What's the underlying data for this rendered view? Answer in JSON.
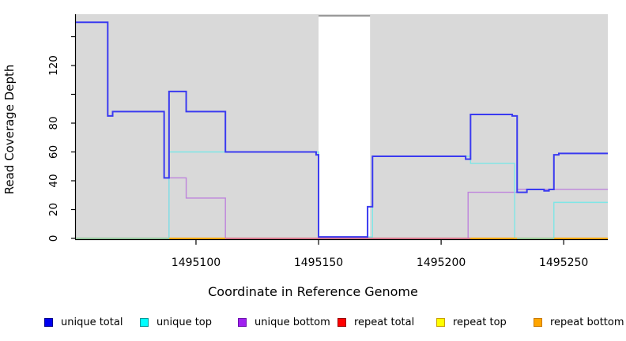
{
  "figure": {
    "xlabel": "Coordinate in Reference Genome",
    "ylabel": "Read Coverage Depth"
  },
  "legend": {
    "items": [
      {
        "label": "unique total",
        "fill": "#0000F0",
        "border": "#00008B"
      },
      {
        "label": "unique top",
        "fill": "#00FFFF",
        "border": "#009999"
      },
      {
        "label": "unique bottom",
        "fill": "#A020F0",
        "border": "#6A0DAD"
      },
      {
        "label": "repeat total",
        "fill": "#FF0000",
        "border": "#990000"
      },
      {
        "label": "repeat top",
        "fill": "#FFFF00",
        "border": "#C8A000"
      },
      {
        "label": "repeat bottom",
        "fill": "#FFA500",
        "border": "#C87800"
      }
    ]
  },
  "chart_data": {
    "type": "line",
    "subtype": "step-coverage",
    "title": "",
    "xlabel": "Coordinate in Reference Genome",
    "ylabel": "Read Coverage Depth",
    "x_domain": [
      1495051,
      1495268
    ],
    "y_domain": [
      0,
      154
    ],
    "grid": false,
    "legend_position": "bottom",
    "x_ticks": [
      {
        "value": 1495100,
        "label": "1495100"
      },
      {
        "value": 1495150,
        "label": "1495150"
      },
      {
        "value": 1495200,
        "label": "1495200"
      },
      {
        "value": 1495250,
        "label": "1495250"
      }
    ],
    "y_ticks": [
      {
        "value": 0,
        "label": "0"
      },
      {
        "value": 20,
        "label": "20"
      },
      {
        "value": 40,
        "label": "40"
      },
      {
        "value": 60,
        "label": "60"
      },
      {
        "value": 80,
        "label": "80"
      },
      {
        "value": 100,
        "label": ""
      },
      {
        "value": 120,
        "label": "120"
      },
      {
        "value": 140,
        "label": ""
      }
    ],
    "gap_region": {
      "from": 1495150,
      "to": 1495171
    },
    "colors": {
      "panel": "#D9D9D9",
      "band": "#FFFFFF",
      "band_border": "#999999",
      "axis": "#000000"
    },
    "series": [
      {
        "name": "unique total",
        "color": "#3A3AF0",
        "width": 2,
        "steps": [
          [
            1495051,
            150
          ],
          [
            1495064,
            85
          ],
          [
            1495066,
            88
          ],
          [
            1495087,
            42
          ],
          [
            1495089,
            102
          ],
          [
            1495096,
            88
          ],
          [
            1495112,
            60
          ],
          [
            1495149,
            58
          ],
          [
            1495150,
            1
          ],
          [
            1495170,
            22
          ],
          [
            1495172,
            57
          ],
          [
            1495210,
            55
          ],
          [
            1495212,
            86
          ],
          [
            1495229,
            85
          ],
          [
            1495231,
            32
          ],
          [
            1495235,
            34
          ],
          [
            1495242,
            33
          ],
          [
            1495244,
            34
          ],
          [
            1495246,
            58
          ],
          [
            1495248,
            59
          ]
        ]
      },
      {
        "name": "unique top",
        "color": "#7EE6E6",
        "width": 1.4,
        "steps": [
          [
            1495051,
            0
          ],
          [
            1495089,
            60
          ],
          [
            1495150,
            1
          ],
          [
            1495172,
            57
          ],
          [
            1495212,
            52
          ],
          [
            1495230,
            0
          ],
          [
            1495246,
            25
          ]
        ]
      },
      {
        "name": "unique bottom",
        "color": "#BE84DC",
        "width": 1.4,
        "steps": [
          [
            1495051,
            0
          ],
          [
            1495089,
            42
          ],
          [
            1495096,
            28
          ],
          [
            1495112,
            0
          ],
          [
            1495211,
            32
          ],
          [
            1495231,
            34
          ]
        ]
      },
      {
        "name": "repeat total",
        "color": "#D66E8C",
        "width": 1.5,
        "steps": [
          [
            1495051,
            0
          ]
        ]
      },
      {
        "name": "repeat top",
        "color": "#FFFF00",
        "width": 1.4,
        "steps": [
          [
            1495051,
            0
          ]
        ]
      },
      {
        "name": "repeat bottom",
        "color": "#FFA500",
        "width": 1.5,
        "steps": [
          [
            1495051,
            0
          ]
        ]
      }
    ],
    "baseline_segments": [
      {
        "from": 1495051,
        "to": 1495089,
        "color": "#8FC896"
      },
      {
        "from": 1495089,
        "to": 1495112,
        "color": "#FFA500"
      },
      {
        "from": 1495112,
        "to": 1495212,
        "color": "#D66E8C"
      },
      {
        "from": 1495212,
        "to": 1495231,
        "color": "#FFA500"
      },
      {
        "from": 1495231,
        "to": 1495246,
        "color": "#8FC896"
      },
      {
        "from": 1495246,
        "to": 1495268,
        "color": "#FFA500"
      }
    ]
  }
}
